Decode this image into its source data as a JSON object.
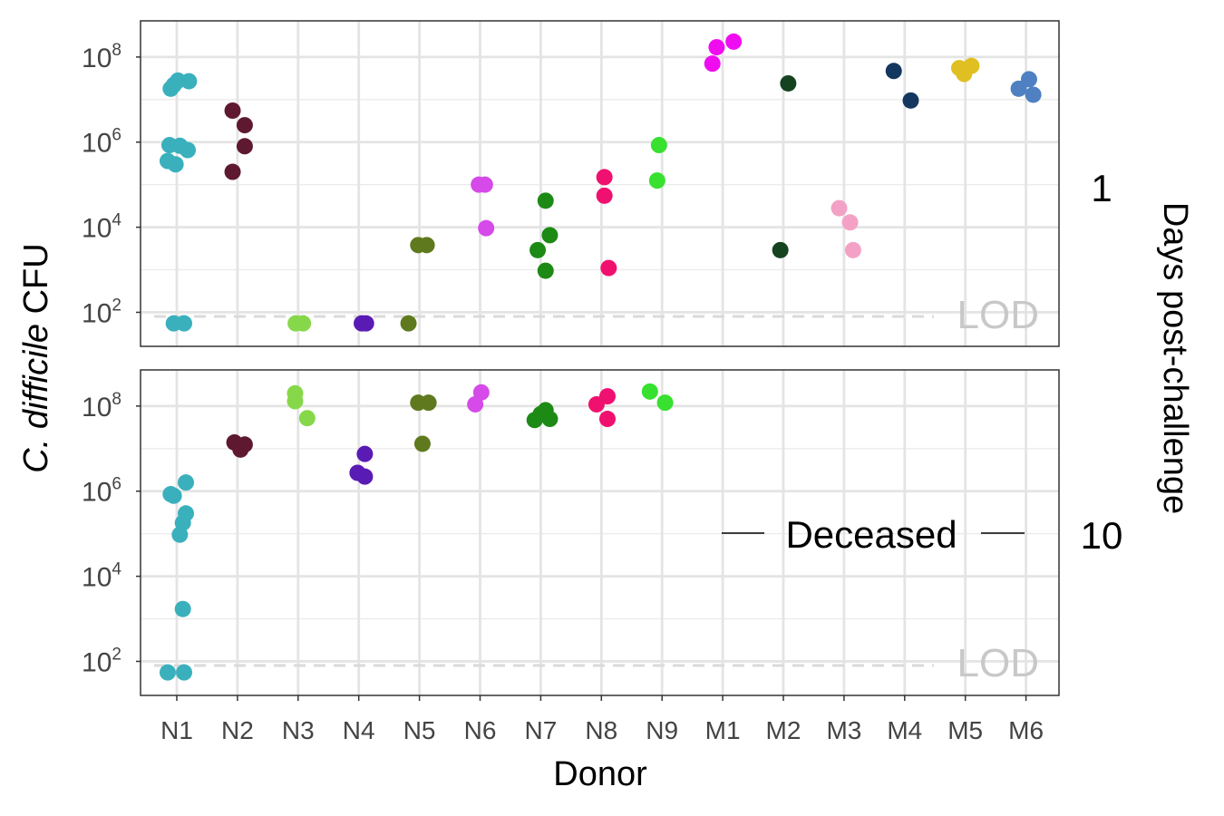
{
  "chart_data": {
    "type": "scatter",
    "xlabel": "Donor",
    "ylabel_italic": "C. difficile",
    "ylabel_rest": " CFU",
    "facet_label": "Days post-challenge",
    "y_scale": "log10",
    "ylim": [
      15,
      700000000
    ],
    "yticks": [
      {
        "base": "10",
        "exp": "2",
        "value": 100
      },
      {
        "base": "10",
        "exp": "4",
        "value": 10000
      },
      {
        "base": "10",
        "exp": "6",
        "value": 1000000
      },
      {
        "base": "10",
        "exp": "8",
        "value": 100000000
      }
    ],
    "lod_label": "LOD",
    "lod_value": 80,
    "grid": true,
    "categories": [
      "N1",
      "N2",
      "N3",
      "N4",
      "N5",
      "N6",
      "N7",
      "N8",
      "N9",
      "M1",
      "M2",
      "M3",
      "M4",
      "M5",
      "M6"
    ],
    "colors": {
      "N1": "#3ab0bd",
      "N2": "#5e1930",
      "N3": "#86d84a",
      "N4": "#5a1bb4",
      "N5": "#5f7a1e",
      "N6": "#d54ae8",
      "N7": "#1e8a16",
      "N8": "#f0106f",
      "N9": "#38e030",
      "M1": "#f00cf0",
      "M2": "#154320",
      "M3": "#f3a2c6",
      "M4": "#14375f",
      "M5": "#dfbf22",
      "M6": "#4f80c2"
    },
    "panels": [
      {
        "day": "1",
        "annotation": "",
        "points": [
          {
            "donor": "N1",
            "jitter": -0.1,
            "y": 18000000
          },
          {
            "donor": "N1",
            "jitter": 0.02,
            "y": 28000000
          },
          {
            "donor": "N1",
            "jitter": 0.2,
            "y": 27000000
          },
          {
            "donor": "N1",
            "jitter": -0.05,
            "y": 22000000
          },
          {
            "donor": "N1",
            "jitter": -0.12,
            "y": 850000
          },
          {
            "donor": "N1",
            "jitter": 0.05,
            "y": 820000
          },
          {
            "donor": "N1",
            "jitter": 0.18,
            "y": 650000
          },
          {
            "donor": "N1",
            "jitter": -0.15,
            "y": 360000
          },
          {
            "donor": "N1",
            "jitter": -0.02,
            "y": 300000
          },
          {
            "donor": "N1",
            "jitter": -0.05,
            "y": 55
          },
          {
            "donor": "N1",
            "jitter": 0.12,
            "y": 55
          },
          {
            "donor": "N2",
            "jitter": -0.08,
            "y": 5500000
          },
          {
            "donor": "N2",
            "jitter": 0.12,
            "y": 2500000
          },
          {
            "donor": "N2",
            "jitter": 0.12,
            "y": 800000
          },
          {
            "donor": "N2",
            "jitter": -0.08,
            "y": 200000
          },
          {
            "donor": "N3",
            "jitter": -0.04,
            "y": 55
          },
          {
            "donor": "N3",
            "jitter": 0.08,
            "y": 55
          },
          {
            "donor": "N4",
            "jitter": 0.05,
            "y": 55
          },
          {
            "donor": "N4",
            "jitter": 0.12,
            "y": 55
          },
          {
            "donor": "N5",
            "jitter": -0.18,
            "y": 55
          },
          {
            "donor": "N5",
            "jitter": -0.02,
            "y": 3800
          },
          {
            "donor": "N5",
            "jitter": 0.12,
            "y": 3800
          },
          {
            "donor": "N6",
            "jitter": -0.02,
            "y": 100000
          },
          {
            "donor": "N6",
            "jitter": 0.08,
            "y": 100000
          },
          {
            "donor": "N6",
            "jitter": 0.1,
            "y": 9500
          },
          {
            "donor": "N7",
            "jitter": 0.08,
            "y": 42000
          },
          {
            "donor": "N7",
            "jitter": 0.15,
            "y": 6500
          },
          {
            "donor": "N7",
            "jitter": -0.05,
            "y": 2900
          },
          {
            "donor": "N7",
            "jitter": 0.08,
            "y": 950
          },
          {
            "donor": "N8",
            "jitter": 0.05,
            "y": 150000
          },
          {
            "donor": "N8",
            "jitter": 0.05,
            "y": 55000
          },
          {
            "donor": "N8",
            "jitter": 0.12,
            "y": 1100
          },
          {
            "donor": "N9",
            "jitter": -0.05,
            "y": 850000
          },
          {
            "donor": "N9",
            "jitter": -0.08,
            "y": 125000
          },
          {
            "donor": "M1",
            "jitter": -0.17,
            "y": 70000000
          },
          {
            "donor": "M1",
            "jitter": -0.1,
            "y": 170000000
          },
          {
            "donor": "M1",
            "jitter": 0.18,
            "y": 230000000
          },
          {
            "donor": "M2",
            "jitter": 0.08,
            "y": 24000000
          },
          {
            "donor": "M2",
            "jitter": -0.05,
            "y": 2900
          },
          {
            "donor": "M3",
            "jitter": -0.08,
            "y": 28000
          },
          {
            "donor": "M3",
            "jitter": 0.1,
            "y": 13000
          },
          {
            "donor": "M3",
            "jitter": 0.15,
            "y": 2900
          },
          {
            "donor": "M4",
            "jitter": -0.18,
            "y": 47000000
          },
          {
            "donor": "M4",
            "jitter": 0.1,
            "y": 9500000
          },
          {
            "donor": "M5",
            "jitter": -0.1,
            "y": 55000000
          },
          {
            "donor": "M5",
            "jitter": -0.02,
            "y": 40000000
          },
          {
            "donor": "M5",
            "jitter": 0.1,
            "y": 62000000
          },
          {
            "donor": "M6",
            "jitter": -0.12,
            "y": 18000000
          },
          {
            "donor": "M6",
            "jitter": 0.05,
            "y": 30000000
          },
          {
            "donor": "M6",
            "jitter": 0.12,
            "y": 13000000
          }
        ]
      },
      {
        "day": "10",
        "annotation": "Deceased",
        "points": [
          {
            "donor": "N1",
            "jitter": -0.1,
            "y": 850000
          },
          {
            "donor": "N1",
            "jitter": -0.05,
            "y": 780000
          },
          {
            "donor": "N1",
            "jitter": 0.15,
            "y": 1600000
          },
          {
            "donor": "N1",
            "jitter": 0.15,
            "y": 300000
          },
          {
            "donor": "N1",
            "jitter": 0.1,
            "y": 180000
          },
          {
            "donor": "N1",
            "jitter": 0.05,
            "y": 95000
          },
          {
            "donor": "N1",
            "jitter": 0.1,
            "y": 1700
          },
          {
            "donor": "N1",
            "jitter": -0.15,
            "y": 55
          },
          {
            "donor": "N1",
            "jitter": 0.12,
            "y": 55
          },
          {
            "donor": "N2",
            "jitter": -0.05,
            "y": 14000000
          },
          {
            "donor": "N2",
            "jitter": 0.05,
            "y": 9500000
          },
          {
            "donor": "N2",
            "jitter": 0.12,
            "y": 12500000
          },
          {
            "donor": "N3",
            "jitter": -0.05,
            "y": 200000000
          },
          {
            "donor": "N3",
            "jitter": -0.05,
            "y": 130000000
          },
          {
            "donor": "N3",
            "jitter": 0.15,
            "y": 52000000
          },
          {
            "donor": "N4",
            "jitter": 0.1,
            "y": 7500000
          },
          {
            "donor": "N4",
            "jitter": -0.02,
            "y": 2700000
          },
          {
            "donor": "N4",
            "jitter": 0.1,
            "y": 2200000
          },
          {
            "donor": "N5",
            "jitter": -0.02,
            "y": 120000000
          },
          {
            "donor": "N5",
            "jitter": 0.15,
            "y": 120000000
          },
          {
            "donor": "N5",
            "jitter": 0.05,
            "y": 13000000
          },
          {
            "donor": "N6",
            "jitter": -0.08,
            "y": 110000000
          },
          {
            "donor": "N6",
            "jitter": 0.02,
            "y": 210000000
          },
          {
            "donor": "N7",
            "jitter": -0.1,
            "y": 47000000
          },
          {
            "donor": "N7",
            "jitter": 0.0,
            "y": 65000000
          },
          {
            "donor": "N7",
            "jitter": 0.08,
            "y": 80000000
          },
          {
            "donor": "N7",
            "jitter": 0.15,
            "y": 50000000
          },
          {
            "donor": "N8",
            "jitter": -0.08,
            "y": 110000000
          },
          {
            "donor": "N8",
            "jitter": 0.1,
            "y": 170000000
          },
          {
            "donor": "N8",
            "jitter": 0.1,
            "y": 50000000
          },
          {
            "donor": "N9",
            "jitter": -0.2,
            "y": 220000000
          },
          {
            "donor": "N9",
            "jitter": 0.05,
            "y": 120000000
          }
        ]
      }
    ]
  }
}
